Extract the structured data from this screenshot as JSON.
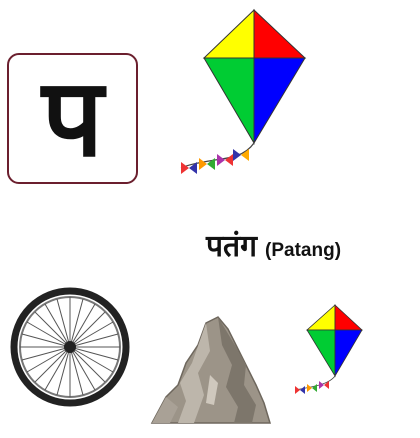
{
  "letter": "प",
  "word": {
    "devanagari": "पतंग",
    "transliteration": "(Patang)"
  },
  "colors": {
    "card_border": "#6b1f2e",
    "kite_top": "#ff0000",
    "kite_left": "#ffff00",
    "kite_right": "#0000ff",
    "kite_bottom": "#00cc00"
  },
  "images": {
    "large_kite": "kite-image",
    "wheel": "wheel-image",
    "mountain": "mountain-image",
    "small_kite": "kite-image"
  }
}
